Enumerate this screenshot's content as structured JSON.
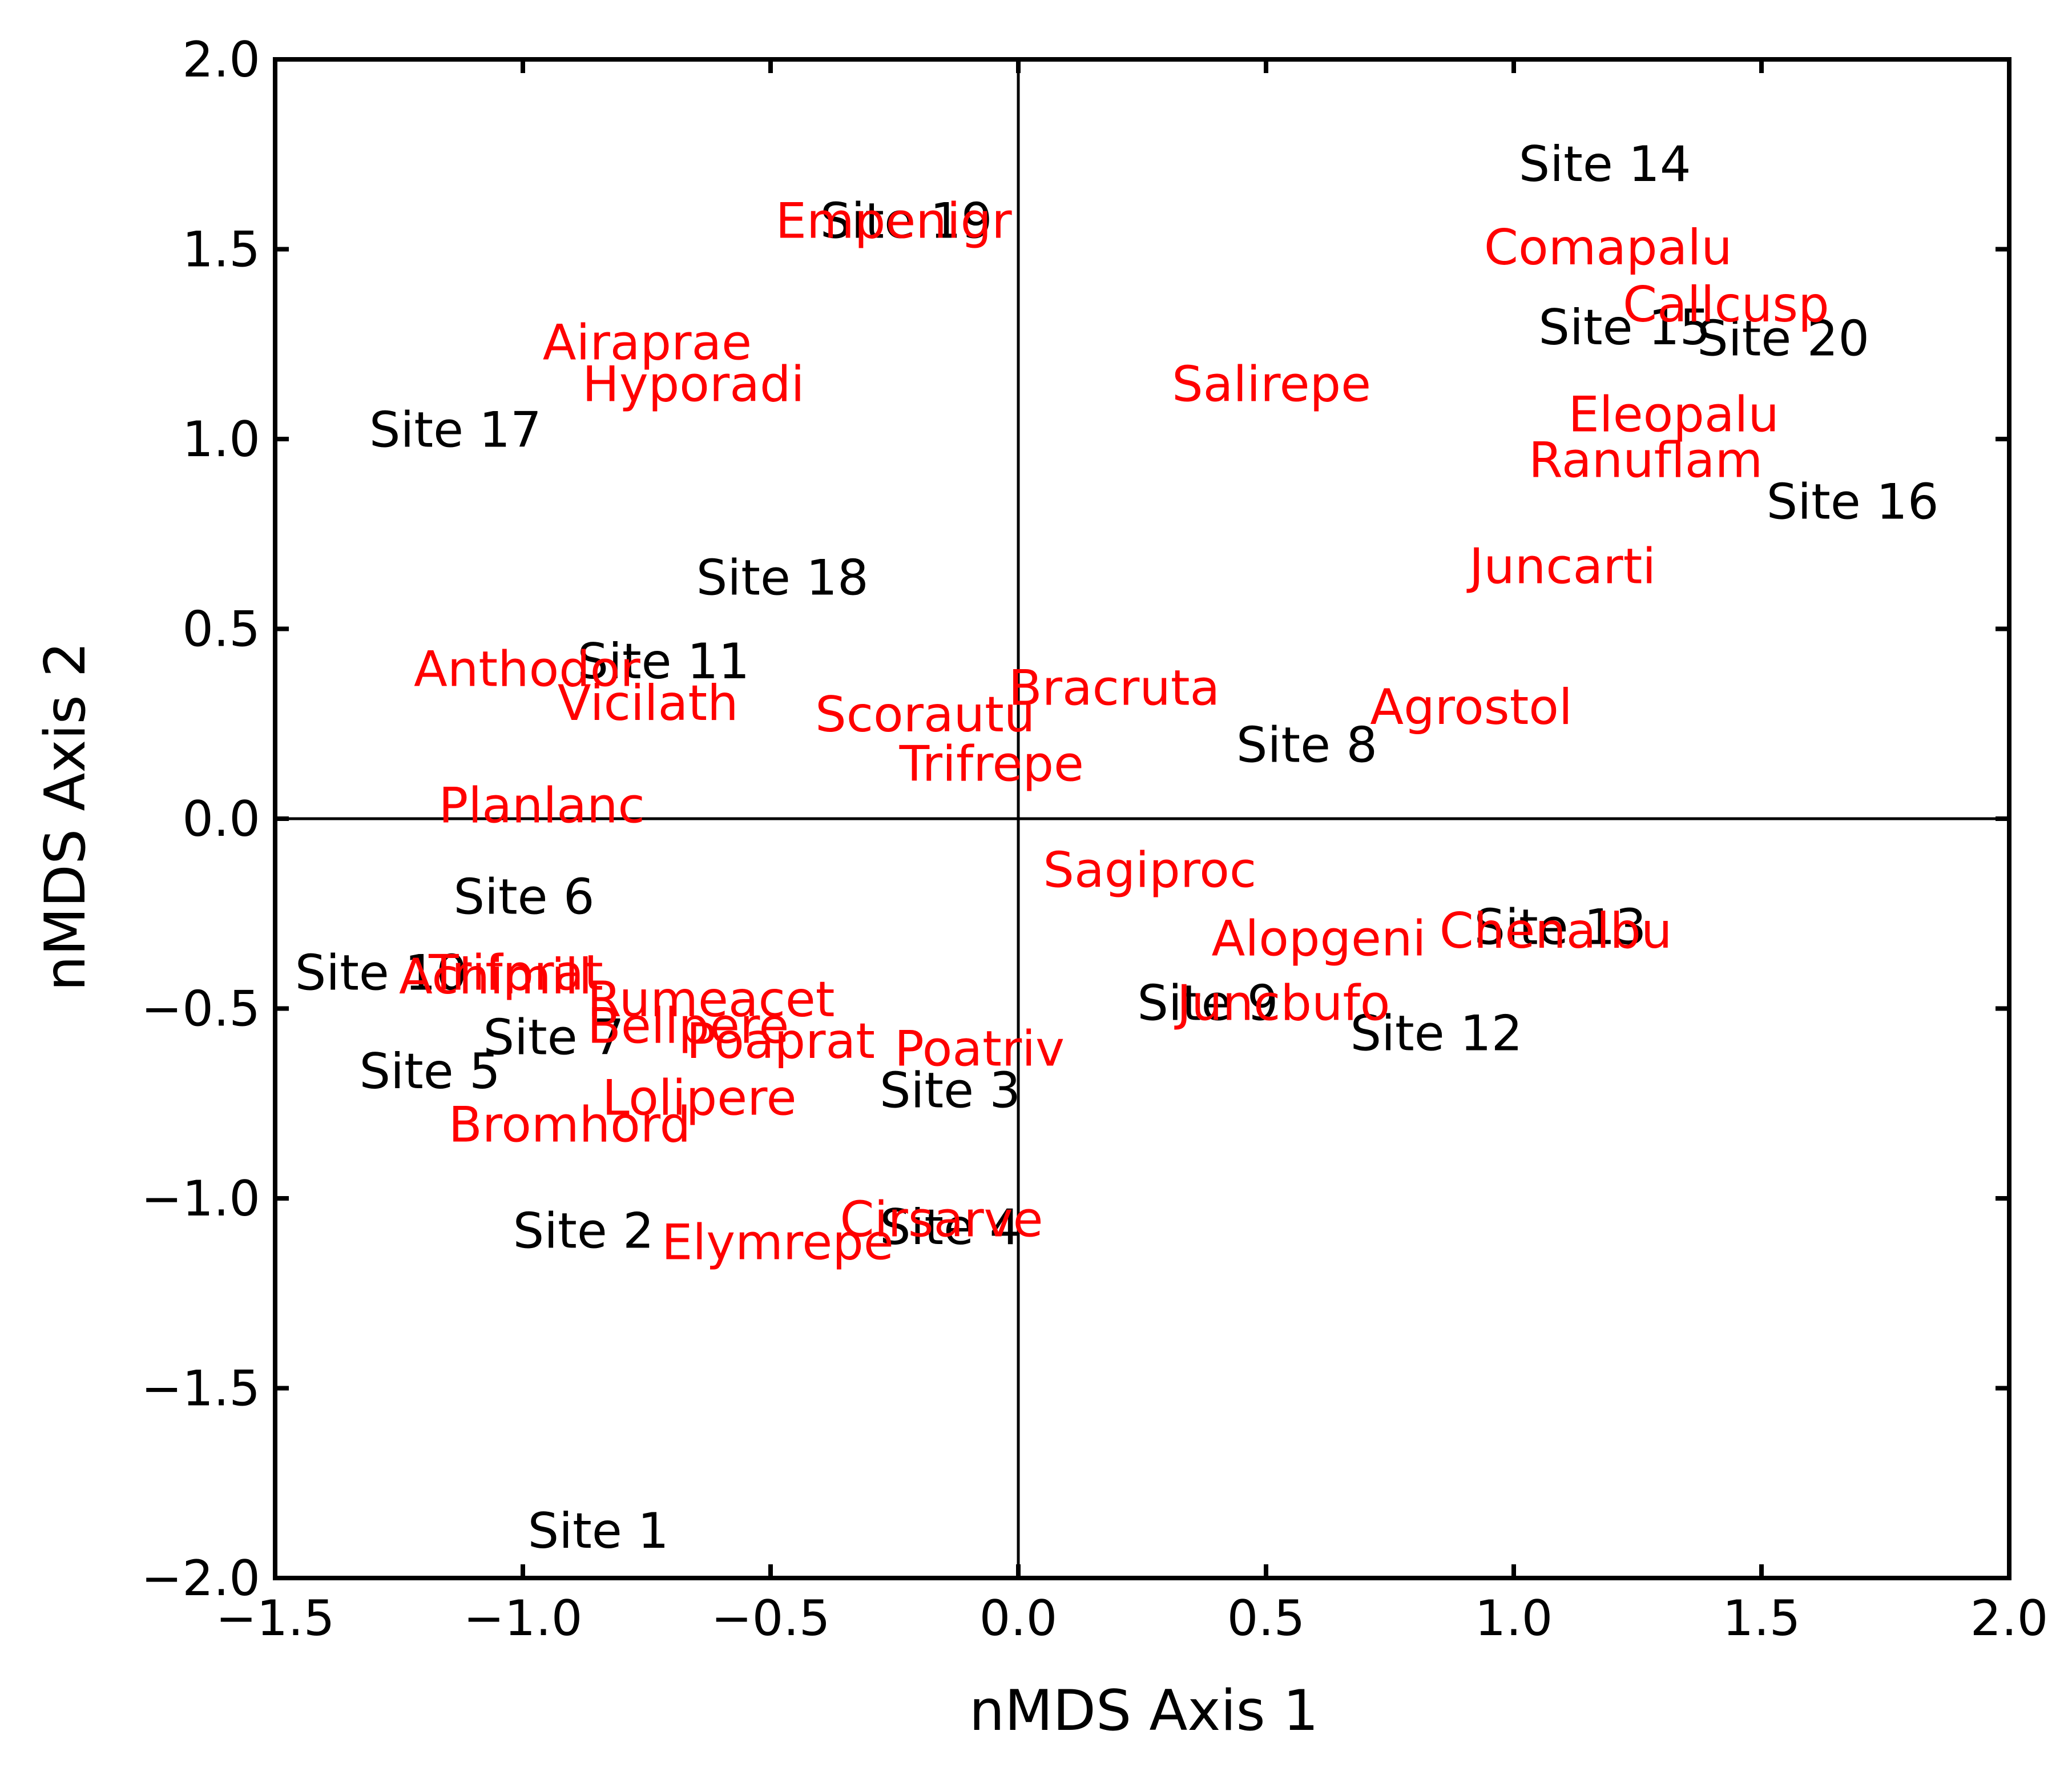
{
  "chart_data": {
    "type": "scatter",
    "title": "",
    "xlabel": "nMDS Axis 1",
    "ylabel": "nMDS Axis 2",
    "xlim": [
      -1.5,
      2.0
    ],
    "ylim": [
      -2.0,
      2.0
    ],
    "x_ticks": [
      -1.5,
      -1.0,
      -0.5,
      0.0,
      0.5,
      1.0,
      1.5,
      2.0
    ],
    "y_ticks": [
      -2.0,
      -1.5,
      -1.0,
      -0.5,
      0.0,
      0.5,
      1.0,
      1.5,
      2.0
    ],
    "x_tick_labels": [
      "−1.5",
      "−1.0",
      "−0.5",
      "0.0",
      "0.5",
      "1.0",
      "1.5",
      "2.0"
    ],
    "y_tick_labels": [
      "−2.0",
      "−1.5",
      "−1.0",
      "−0.5",
      "0.0",
      "0.5",
      "1.0",
      "1.5",
      "2.0"
    ],
    "grid": false,
    "reference_lines": {
      "x": 0,
      "y": 0
    },
    "series": [
      {
        "color": "#000000",
        "points": [
          {
            "label": "Site 1",
            "x": -0.99,
            "y": -1.92
          },
          {
            "label": "Site 2",
            "x": -1.02,
            "y": -1.13
          },
          {
            "label": "Site 3",
            "x": -0.28,
            "y": -0.76
          },
          {
            "label": "Site 4",
            "x": -0.28,
            "y": -1.12
          },
          {
            "label": "Site 5",
            "x": -1.33,
            "y": -0.71
          },
          {
            "label": "Site 6",
            "x": -1.14,
            "y": -0.25
          },
          {
            "label": "Site 7",
            "x": -1.08,
            "y": -0.62
          },
          {
            "label": "Site 8",
            "x": 0.44,
            "y": 0.15
          },
          {
            "label": "Site 9",
            "x": 0.24,
            "y": -0.53
          },
          {
            "label": "Site 10",
            "x": -1.46,
            "y": -0.45
          },
          {
            "label": "Site 11",
            "x": -0.89,
            "y": 0.37
          },
          {
            "label": "Site 12",
            "x": 0.67,
            "y": -0.61
          },
          {
            "label": "Site 13",
            "x": 0.92,
            "y": -0.33
          },
          {
            "label": "Site 14",
            "x": 1.01,
            "y": 1.68
          },
          {
            "label": "Site 15",
            "x": 1.05,
            "y": 1.25
          },
          {
            "label": "Site 16",
            "x": 1.51,
            "y": 0.79
          },
          {
            "label": "Site 17",
            "x": -1.31,
            "y": 0.98
          },
          {
            "label": "Site 18",
            "x": -0.65,
            "y": 0.59
          },
          {
            "label": "Site 19",
            "x": -0.4,
            "y": 1.53
          },
          {
            "label": "Site 20",
            "x": 1.37,
            "y": 1.22
          }
        ]
      },
      {
        "color": "#ff0000",
        "points": [
          {
            "label": "Empenigr",
            "x": -0.49,
            "y": 1.53
          },
          {
            "label": "Comapalu",
            "x": 0.94,
            "y": 1.46
          },
          {
            "label": "Callcusp",
            "x": 1.22,
            "y": 1.31
          },
          {
            "label": "Airaprae",
            "x": -0.96,
            "y": 1.21
          },
          {
            "label": "Hyporadi",
            "x": -0.88,
            "y": 1.1
          },
          {
            "label": "Salirepe",
            "x": 0.31,
            "y": 1.1
          },
          {
            "label": "Eleopalu",
            "x": 1.11,
            "y": 1.02
          },
          {
            "label": "Ranuflam",
            "x": 1.03,
            "y": 0.9
          },
          {
            "label": "Juncarti",
            "x": 0.91,
            "y": 0.62
          },
          {
            "label": "Anthodor",
            "x": -1.22,
            "y": 0.35
          },
          {
            "label": "Vicilath",
            "x": -0.93,
            "y": 0.26
          },
          {
            "label": "Bracruta",
            "x": -0.02,
            "y": 0.3
          },
          {
            "label": "Scorautu",
            "x": -0.41,
            "y": 0.23
          },
          {
            "label": "Agrostol",
            "x": 0.71,
            "y": 0.25
          },
          {
            "label": "Trifrepe",
            "x": -0.24,
            "y": 0.1
          },
          {
            "label": "Planlanc",
            "x": -1.17,
            "y": -0.01
          },
          {
            "label": "Sagiproc",
            "x": 0.05,
            "y": -0.18
          },
          {
            "label": "Alopgeni",
            "x": 0.39,
            "y": -0.36
          },
          {
            "label": "Chenalbu",
            "x": 0.85,
            "y": -0.34
          },
          {
            "label": "Achimill",
            "x": -1.25,
            "y": -0.46
          },
          {
            "label": "Trifprat",
            "x": -1.19,
            "y": -0.45
          },
          {
            "label": "Rumeacet",
            "x": -0.87,
            "y": -0.52
          },
          {
            "label": "Juncbufo",
            "x": 0.32,
            "y": -0.53
          },
          {
            "label": "Bellpere",
            "x": -0.87,
            "y": -0.59
          },
          {
            "label": "Poaprat",
            "x": -0.67,
            "y": -0.63
          },
          {
            "label": "Poatriv",
            "x": -0.25,
            "y": -0.65
          },
          {
            "label": "Lolipere",
            "x": -0.84,
            "y": -0.78
          },
          {
            "label": "Bromhord",
            "x": -1.15,
            "y": -0.85
          },
          {
            "label": "Cirsarve",
            "x": -0.36,
            "y": -1.1
          },
          {
            "label": "Elymrepe",
            "x": -0.72,
            "y": -1.16
          }
        ]
      }
    ]
  }
}
